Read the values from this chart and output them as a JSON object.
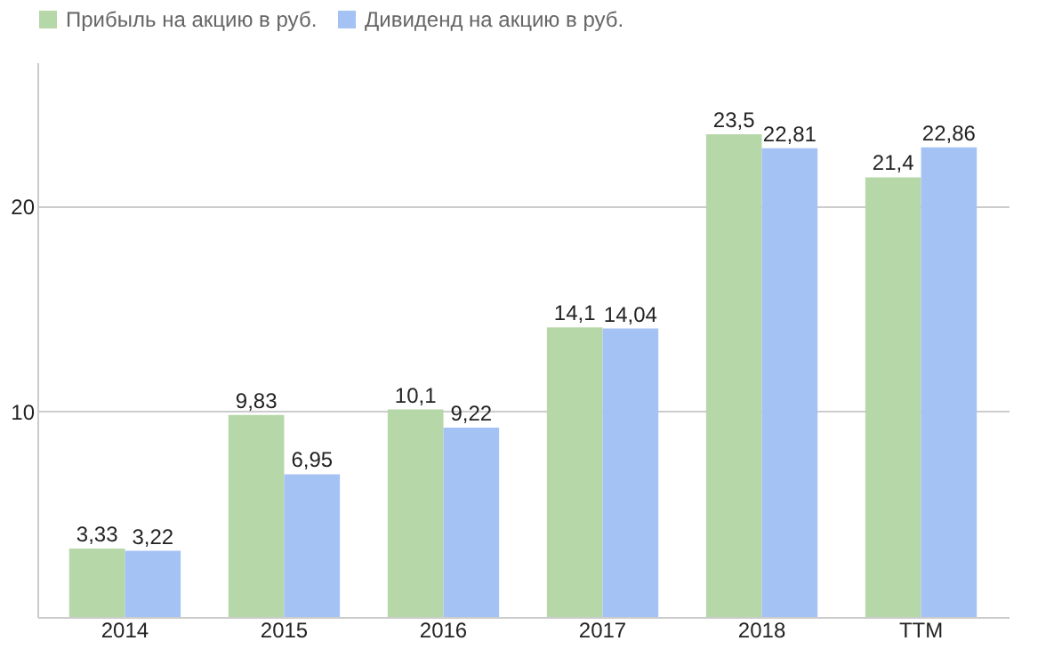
{
  "chart_data": {
    "type": "bar",
    "categories": [
      "2014",
      "2015",
      "2016",
      "2017",
      "2018",
      "TTM"
    ],
    "series": [
      {
        "name": "Прибыль на акцию в руб.",
        "color": "#b6d7a8",
        "values": [
          3.33,
          9.83,
          10.1,
          14.1,
          23.5,
          21.4
        ],
        "value_labels": [
          "3,33",
          "9,83",
          "10,1",
          "14,1",
          "23,5",
          "21,4"
        ]
      },
      {
        "name": "Дивиденд на акцию в руб.",
        "color": "#a4c2f4",
        "values": [
          3.22,
          6.95,
          9.22,
          14.04,
          22.81,
          22.86
        ],
        "value_labels": [
          "3,22",
          "6,95",
          "9,22",
          "14,04",
          "22,81",
          "22,86"
        ]
      }
    ],
    "ylim": [
      0,
      27
    ],
    "yticks": [
      {
        "value": 0,
        "label": null
      },
      10,
      20
    ],
    "grid": "y",
    "legend": "top left"
  }
}
